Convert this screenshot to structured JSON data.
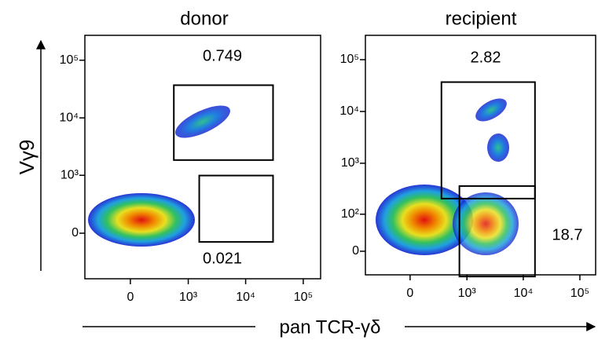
{
  "axis_labels": {
    "x": "pan TCR-γδ",
    "y": "Vγ9"
  },
  "chart_data": [
    {
      "type": "density",
      "title": "donor",
      "xlim": [
        -600,
        200000
      ],
      "ylim": [
        -600,
        270000
      ],
      "xticks": [
        0,
        {
          "value": 1000,
          "label": "10³"
        },
        {
          "value": 10000,
          "label": "10⁴"
        },
        {
          "value": 100000,
          "label": "10⁵"
        }
      ],
      "yticks": [
        0,
        {
          "value": 1000,
          "label": "10³"
        },
        {
          "value": 10000,
          "label": "10⁴"
        },
        {
          "value": 100000,
          "label": "10⁵"
        }
      ],
      "gates": [
        {
          "value": 0.749,
          "x": [
            550,
            29900
          ],
          "y": [
            1850,
            36900
          ]
        },
        {
          "value": 0.021,
          "x": [
            1560,
            29900
          ],
          "y": [
            -71,
            990
          ]
        }
      ]
    },
    {
      "type": "density",
      "title": "recipient",
      "xlim": [
        -600,
        190000
      ],
      "ylim": [
        -50,
        295000
      ],
      "xticks": [
        0,
        {
          "value": 1000,
          "label": "10³"
        },
        {
          "value": 10000,
          "label": "10⁴"
        },
        {
          "value": 100000,
          "label": "10⁵"
        }
      ],
      "yticks": [
        0,
        {
          "value": 100,
          "label": "10²"
        },
        {
          "value": 1000,
          "label": "10³"
        },
        {
          "value": 10000,
          "label": "10⁴"
        },
        {
          "value": 100000,
          "label": "10⁵"
        }
      ],
      "gates": [
        {
          "value": 2.82,
          "x": [
            330,
            16100
          ],
          "y": [
            206,
            36900
          ]
        },
        {
          "value": 18.7,
          "x": [
            730,
            16100
          ],
          "y": [
            -55,
            362
          ]
        }
      ]
    }
  ]
}
